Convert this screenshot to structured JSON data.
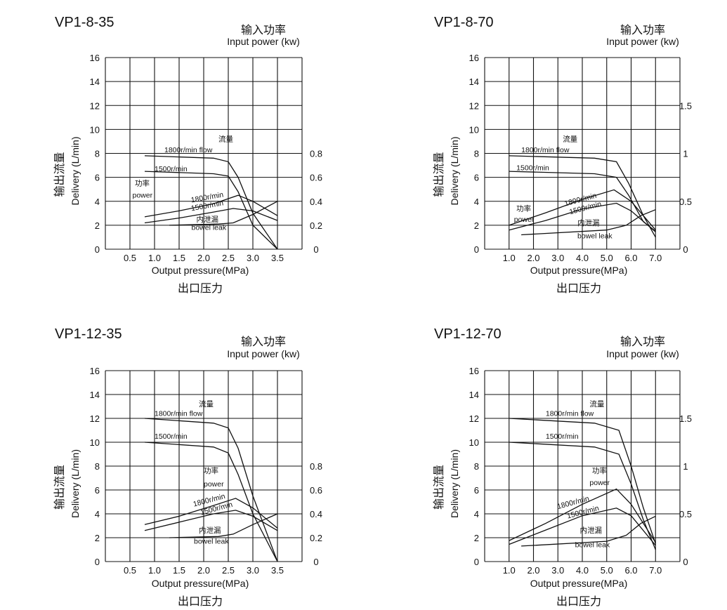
{
  "chart_data": [
    {
      "type": "line",
      "title": "VP1-8-35",
      "xlabel": "Output pressure(MPa)",
      "xlabel_cn": "出口压力",
      "ylabel": "Delivery   (L/min)",
      "ylabel_cn": "输出流量",
      "y2label": "Input power (kw)",
      "y2label_cn": "输入功率",
      "xlim": [
        0,
        4
      ],
      "ylim": [
        0,
        16
      ],
      "y2lim": [
        0,
        1.6
      ],
      "x_ticks": [
        "0.5",
        "1.0",
        "1.5",
        "2.0",
        "2.5",
        "3.0",
        "3.5"
      ],
      "y_ticks": [
        "0",
        "2",
        "4",
        "6",
        "8",
        "10",
        "12",
        "14",
        "16"
      ],
      "y2_ticks": [
        "0",
        "0.2",
        "0.4",
        "0.6",
        "0.8"
      ],
      "grid": true,
      "annotations": [
        {
          "text": "流量",
          "x": 2.3,
          "y": 9.0,
          "cn": true
        },
        {
          "text": "1800r/min flow",
          "x": 1.2,
          "y": 8.1
        },
        {
          "text": "1500r/min",
          "x": 1.0,
          "y": 6.5
        },
        {
          "text": "功率",
          "x": 0.6,
          "y": 5.3,
          "cn": true
        },
        {
          "text": "power",
          "x": 0.55,
          "y": 4.3
        },
        {
          "text": "1800r/min",
          "x": 1.75,
          "y": 3.9,
          "rotate": -10
        },
        {
          "text": "1500r/min",
          "x": 1.75,
          "y": 3.2,
          "rotate": -10
        },
        {
          "text": "内泄漏",
          "x": 1.85,
          "y": 2.3,
          "cn": true
        },
        {
          "text": "bowel leak",
          "x": 1.75,
          "y": 1.6
        }
      ],
      "series": [
        {
          "points": [
            [
              0.8,
              7.8
            ],
            [
              2.2,
              7.6
            ],
            [
              2.5,
              7.3
            ],
            [
              2.7,
              6.0
            ],
            [
              3.0,
              3.0
            ],
            [
              3.5,
              0.0
            ]
          ]
        },
        {
          "points": [
            [
              0.8,
              6.5
            ],
            [
              2.2,
              6.3
            ],
            [
              2.5,
              6.1
            ],
            [
              2.7,
              4.8
            ],
            [
              3.0,
              2.0
            ],
            [
              3.5,
              0.0
            ]
          ]
        },
        {
          "axis": "y2",
          "points": [
            [
              0.8,
              0.27
            ],
            [
              1.5,
              0.32
            ],
            [
              2.2,
              0.38
            ],
            [
              2.7,
              0.45
            ],
            [
              3.0,
              0.4
            ],
            [
              3.5,
              0.28
            ]
          ]
        },
        {
          "axis": "y2",
          "points": [
            [
              0.8,
              0.22
            ],
            [
              1.5,
              0.26
            ],
            [
              2.2,
              0.31
            ],
            [
              2.6,
              0.34
            ],
            [
              3.0,
              0.32
            ],
            [
              3.5,
              0.24
            ]
          ]
        },
        {
          "points": [
            [
              1.3,
              2.0
            ],
            [
              2.3,
              2.1
            ],
            [
              2.6,
              2.2
            ],
            [
              3.0,
              2.9
            ],
            [
              3.5,
              4.0
            ]
          ]
        }
      ]
    },
    {
      "type": "line",
      "title": "VP1-8-70",
      "xlabel": "Output pressure(MPa)",
      "xlabel_cn": "出口压力",
      "ylabel": "Delivery   (L/min)",
      "ylabel_cn": "输出流量",
      "y2label": "Input power (kw)",
      "y2label_cn": "输入功率",
      "xlim": [
        0,
        8
      ],
      "ylim": [
        0,
        16
      ],
      "y2lim": [
        0,
        2
      ],
      "x_ticks": [
        "1.0",
        "2.0",
        "3.0",
        "4.0",
        "5.0",
        "6.0",
        "7.0"
      ],
      "y_ticks": [
        "0",
        "2",
        "4",
        "6",
        "8",
        "10",
        "12",
        "14",
        "16"
      ],
      "y2_ticks": [
        "0",
        "0.5",
        "1",
        "1.5"
      ],
      "grid": true,
      "annotations": [
        {
          "text": "流量",
          "x": 3.2,
          "y": 9.0,
          "cn": true
        },
        {
          "text": "1800r/min flow",
          "x": 1.5,
          "y": 8.1
        },
        {
          "text": "1500r/min",
          "x": 1.3,
          "y": 6.6
        },
        {
          "text": "功率",
          "x": 1.3,
          "y": 3.2,
          "cn": true
        },
        {
          "text": "power",
          "x": 1.2,
          "y": 2.3
        },
        {
          "text": "1800r/min",
          "x": 3.3,
          "y": 3.6,
          "rotate": -15
        },
        {
          "text": "1500r/min",
          "x": 3.5,
          "y": 2.9,
          "rotate": -15
        },
        {
          "text": "内泄漏",
          "x": 3.8,
          "y": 2.0,
          "cn": true
        },
        {
          "text": "bowel leak",
          "x": 3.8,
          "y": 0.9
        }
      ],
      "series": [
        {
          "points": [
            [
              1.0,
              7.8
            ],
            [
              4.5,
              7.6
            ],
            [
              5.4,
              7.3
            ],
            [
              5.9,
              5.5
            ],
            [
              6.5,
              2.8
            ],
            [
              7.0,
              1.0
            ]
          ]
        },
        {
          "points": [
            [
              1.0,
              6.5
            ],
            [
              4.5,
              6.3
            ],
            [
              5.4,
              6.0
            ],
            [
              5.9,
              4.5
            ],
            [
              6.5,
              2.3
            ],
            [
              7.0,
              1.5
            ]
          ]
        },
        {
          "axis": "y2",
          "points": [
            [
              1.0,
              0.25
            ],
            [
              2.5,
              0.38
            ],
            [
              4.0,
              0.52
            ],
            [
              5.3,
              0.62
            ],
            [
              6.0,
              0.5
            ],
            [
              7.0,
              0.2
            ]
          ]
        },
        {
          "axis": "y2",
          "points": [
            [
              1.0,
              0.2
            ],
            [
              2.5,
              0.3
            ],
            [
              4.0,
              0.42
            ],
            [
              5.4,
              0.48
            ],
            [
              6.0,
              0.4
            ],
            [
              7.0,
              0.18
            ]
          ]
        },
        {
          "points": [
            [
              1.5,
              1.2
            ],
            [
              5.0,
              1.6
            ],
            [
              5.8,
              2.0
            ],
            [
              6.4,
              2.8
            ],
            [
              7.0,
              3.3
            ]
          ]
        }
      ]
    },
    {
      "type": "line",
      "title": "VP1-12-35",
      "xlabel": "Output pressure(MPa)",
      "xlabel_cn": "出口压力",
      "ylabel": "Delivery   (L/min)",
      "ylabel_cn": "输出流量",
      "y2label": "Input power (kw)",
      "y2label_cn": "输入功率",
      "xlim": [
        0,
        4
      ],
      "ylim": [
        0,
        16
      ],
      "y2lim": [
        0,
        1.6
      ],
      "x_ticks": [
        "0.5",
        "1.0",
        "1.5",
        "2.0",
        "2.5",
        "3.0",
        "3.5"
      ],
      "y_ticks": [
        "0",
        "2",
        "4",
        "6",
        "8",
        "10",
        "12",
        "14",
        "16"
      ],
      "y2_ticks": [
        "0",
        "0.2",
        "0.4",
        "0.6",
        "0.8"
      ],
      "grid": true,
      "annotations": [
        {
          "text": "流量",
          "x": 1.9,
          "y": 13.0,
          "cn": true
        },
        {
          "text": "1800r/min flow",
          "x": 1.0,
          "y": 12.2
        },
        {
          "text": "1500r/min",
          "x": 1.0,
          "y": 10.3
        },
        {
          "text": "功率",
          "x": 2.0,
          "y": 7.4,
          "cn": true
        },
        {
          "text": "power",
          "x": 2.0,
          "y": 6.3
        },
        {
          "text": "1800r/min",
          "x": 1.8,
          "y": 4.6,
          "rotate": -15
        },
        {
          "text": "1500r/min",
          "x": 1.95,
          "y": 3.9,
          "rotate": -15
        },
        {
          "text": "内泄漏",
          "x": 1.9,
          "y": 2.4,
          "cn": true
        },
        {
          "text": "bowel leak",
          "x": 1.8,
          "y": 1.5
        }
      ],
      "series": [
        {
          "points": [
            [
              0.8,
              12.0
            ],
            [
              2.2,
              11.6
            ],
            [
              2.5,
              11.2
            ],
            [
              2.7,
              9.5
            ],
            [
              3.0,
              5.5
            ],
            [
              3.5,
              0.0
            ]
          ]
        },
        {
          "points": [
            [
              0.8,
              10.0
            ],
            [
              2.2,
              9.6
            ],
            [
              2.5,
              9.1
            ],
            [
              2.7,
              7.3
            ],
            [
              3.0,
              4.0
            ],
            [
              3.5,
              0.0
            ]
          ]
        },
        {
          "axis": "y2",
          "points": [
            [
              0.8,
              0.31
            ],
            [
              1.5,
              0.38
            ],
            [
              2.2,
              0.47
            ],
            [
              2.65,
              0.53
            ],
            [
              3.0,
              0.45
            ],
            [
              3.5,
              0.28
            ]
          ]
        },
        {
          "axis": "y2",
          "points": [
            [
              0.8,
              0.26
            ],
            [
              1.5,
              0.33
            ],
            [
              2.2,
              0.4
            ],
            [
              2.65,
              0.43
            ],
            [
              3.0,
              0.38
            ],
            [
              3.5,
              0.26
            ]
          ]
        },
        {
          "points": [
            [
              1.3,
              2.0
            ],
            [
              2.3,
              2.1
            ],
            [
              2.6,
              2.3
            ],
            [
              3.0,
              3.1
            ],
            [
              3.5,
              4.0
            ]
          ]
        }
      ]
    },
    {
      "type": "line",
      "title": "VP1-12-70",
      "xlabel": "Output pressure(MPa)",
      "xlabel_cn": "出口压力",
      "ylabel": "Delivery   (L/min)",
      "ylabel_cn": "输出流量",
      "y2label": "Input power (kw)",
      "y2label_cn": "输入功率",
      "xlim": [
        0,
        8
      ],
      "ylim": [
        0,
        16
      ],
      "y2lim": [
        0,
        2
      ],
      "x_ticks": [
        "1.0",
        "2.0",
        "3.0",
        "4.0",
        "5.0",
        "6.0",
        "7.0"
      ],
      "y_ticks": [
        "0",
        "2",
        "4",
        "6",
        "8",
        "10",
        "12",
        "14",
        "16"
      ],
      "y2_ticks": [
        "0",
        "0.5",
        "1",
        "1.5"
      ],
      "grid": true,
      "annotations": [
        {
          "text": "流量",
          "x": 4.3,
          "y": 13.0,
          "cn": true
        },
        {
          "text": "1800r/min flow",
          "x": 2.5,
          "y": 12.2
        },
        {
          "text": "1500r/min",
          "x": 2.5,
          "y": 10.3
        },
        {
          "text": "功率",
          "x": 4.4,
          "y": 7.4,
          "cn": true
        },
        {
          "text": "power",
          "x": 4.3,
          "y": 6.4
        },
        {
          "text": "1800r/min",
          "x": 3.0,
          "y": 4.4,
          "rotate": -15
        },
        {
          "text": "1500r/min",
          "x": 3.4,
          "y": 3.6,
          "rotate": -15
        },
        {
          "text": "内泄漏",
          "x": 3.9,
          "y": 2.4,
          "cn": true
        },
        {
          "text": "bowel leak",
          "x": 3.7,
          "y": 1.2
        }
      ],
      "series": [
        {
          "points": [
            [
              1.0,
              12.0
            ],
            [
              4.5,
              11.6
            ],
            [
              5.5,
              11.0
            ],
            [
              6.0,
              8.0
            ],
            [
              6.5,
              4.5
            ],
            [
              7.0,
              1.5
            ]
          ]
        },
        {
          "points": [
            [
              1.0,
              10.0
            ],
            [
              4.5,
              9.6
            ],
            [
              5.5,
              9.0
            ],
            [
              6.0,
              6.5
            ],
            [
              6.5,
              3.5
            ],
            [
              7.0,
              1.0
            ]
          ]
        },
        {
          "axis": "y2",
          "points": [
            [
              1.0,
              0.22
            ],
            [
              2.5,
              0.4
            ],
            [
              4.0,
              0.6
            ],
            [
              5.4,
              0.76
            ],
            [
              6.0,
              0.6
            ],
            [
              7.0,
              0.2
            ]
          ]
        },
        {
          "axis": "y2",
          "points": [
            [
              1.0,
              0.18
            ],
            [
              2.5,
              0.33
            ],
            [
              4.0,
              0.48
            ],
            [
              5.4,
              0.56
            ],
            [
              6.0,
              0.48
            ],
            [
              7.0,
              0.17
            ]
          ]
        },
        {
          "points": [
            [
              1.5,
              1.3
            ],
            [
              5.0,
              1.7
            ],
            [
              5.8,
              2.2
            ],
            [
              6.4,
              3.2
            ],
            [
              7.0,
              3.8
            ]
          ]
        }
      ]
    }
  ]
}
